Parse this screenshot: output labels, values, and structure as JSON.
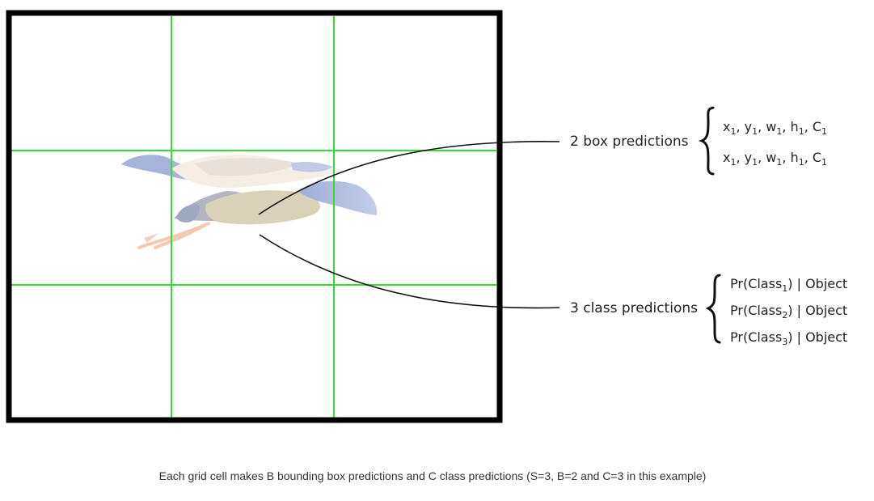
{
  "diagram": {
    "grid": {
      "rows": 3,
      "cols": 3,
      "frame_color": "#000000",
      "line_color": "#33dd33"
    },
    "box_predictions": {
      "label": "2 box predictions",
      "entries": [
        {
          "parts": [
            "x",
            "1",
            ", y",
            "1",
            ", w",
            "1",
            ", h",
            "1",
            ", C",
            "1"
          ]
        },
        {
          "parts": [
            "x",
            "1",
            ", y",
            "1",
            ", w",
            "1",
            ", h",
            "1",
            ", C",
            "1"
          ]
        }
      ]
    },
    "class_predictions": {
      "label": "3 class predictions",
      "entries": [
        {
          "parts": [
            "Pr(Class",
            "1",
            ") | Object"
          ]
        },
        {
          "parts": [
            "Pr(Class",
            "2",
            ") | Object"
          ]
        },
        {
          "parts": [
            "Pr(Class",
            "3",
            ") | Object"
          ]
        }
      ]
    },
    "caption": "Each grid cell makes B bounding box predictions and C class predictions (S=3, B=2 and C=3 in this example)"
  }
}
